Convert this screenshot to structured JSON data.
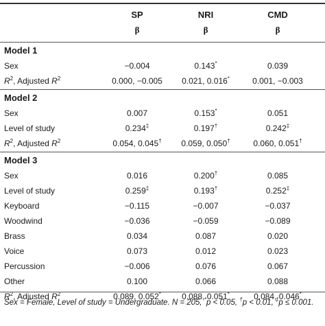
{
  "header": {
    "col1": "SP",
    "col2": "NRI",
    "col3": "CMD",
    "beta": "β"
  },
  "models": [
    {
      "title": "Model 1",
      "rows": [
        {
          "label": "Sex",
          "v": [
            "−0.004",
            "0.143*",
            "0.039"
          ]
        },
        {
          "label": "R2, Adjusted R2",
          "v": [
            "0.000, −0.005",
            "0.021, 0.016*",
            "0.001, −0.003"
          ]
        }
      ]
    },
    {
      "title": "Model 2",
      "rows": [
        {
          "label": "Sex",
          "v": [
            "0.007",
            "0.153*",
            "0.051"
          ]
        },
        {
          "label": "Level of study",
          "v": [
            "0.234‡",
            "0.197†",
            "0.242‡"
          ]
        },
        {
          "label": "R2, Adjusted R2",
          "v": [
            "0.054, 0.045†",
            "0.059, 0.050†",
            "0.060, 0.051†"
          ]
        }
      ]
    },
    {
      "title": "Model 3",
      "rows": [
        {
          "label": "Sex",
          "v": [
            "0.016",
            "0.200†",
            "0.085"
          ]
        },
        {
          "label": "Level of study",
          "v": [
            "0.259‡",
            "0.193†",
            "0.252‡"
          ]
        },
        {
          "label": "Keyboard",
          "v": [
            "−0.115",
            "−0.007",
            "−0.037"
          ]
        },
        {
          "label": "Woodwind",
          "v": [
            "−0.036",
            "−0.059",
            "−0.089"
          ]
        },
        {
          "label": "Brass",
          "v": [
            "0.034",
            "0.087",
            "0.020"
          ]
        },
        {
          "label": "Voice",
          "v": [
            "0.073",
            "0.012",
            "0.023"
          ]
        },
        {
          "label": "Percussion",
          "v": [
            "−0.006",
            "0.076",
            "0.067"
          ]
        },
        {
          "label": "Other",
          "v": [
            "0.100",
            "0.066",
            "0.088"
          ]
        },
        {
          "label": "R2, Adjusted R2",
          "v": [
            "0.089, 0.052*",
            "0.088, 0.051*",
            "0.084, 0.046*"
          ]
        }
      ]
    }
  ],
  "note": "Sex = Female, Level of study = Undergraduate. N = 205, *p < 0.05, †p < 0.01, ‡p ≤ 0.001."
}
